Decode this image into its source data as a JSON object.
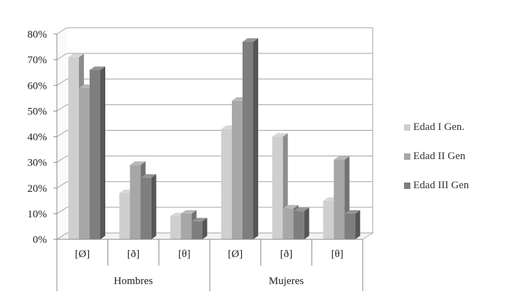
{
  "chart_data": {
    "type": "bar",
    "style": "3d-clustered-column",
    "groups": [
      {
        "label": "Hombres",
        "categories": [
          "[Ø]",
          "[ð]",
          "[θ]"
        ]
      },
      {
        "label": "Mujeres",
        "categories": [
          "[Ø]",
          "[ð]",
          "[θ]"
        ]
      }
    ],
    "categories": [
      "[Ø]",
      "[ð]",
      "[θ]",
      "[Ø]",
      "[ð]",
      "[θ]"
    ],
    "series": [
      {
        "name": "Edad I Gen.",
        "color": "#cfcfcf",
        "values": [
          0.71,
          0.18,
          0.09,
          0.43,
          0.4,
          0.15
        ]
      },
      {
        "name": "Edad II Gen",
        "color": "#a7a7a7",
        "values": [
          0.59,
          0.29,
          0.1,
          0.54,
          0.12,
          0.31
        ]
      },
      {
        "name": "Edad III Gen",
        "color": "#7e7e7e",
        "values": [
          0.66,
          0.24,
          0.07,
          0.77,
          0.11,
          0.1
        ]
      }
    ],
    "y_ticks": [
      "0%",
      "10%",
      "20%",
      "30%",
      "40%",
      "50%",
      "60%",
      "70%",
      "80%"
    ],
    "ylim": [
      0,
      0.8
    ],
    "grid": true,
    "legend_position": "right"
  }
}
